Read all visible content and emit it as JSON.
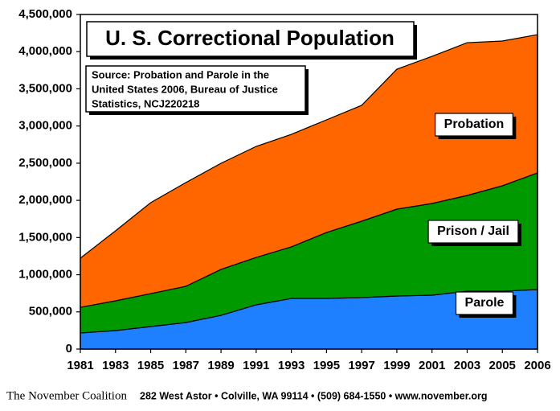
{
  "chart_data": {
    "type": "area",
    "stacked": true,
    "title": "U. S. Correctional Population",
    "subtitle": [
      "Source: Probation and Parole in the",
      "United States 2006, Bureau of Justice",
      "Statistics, NCJ220218"
    ],
    "categories": [
      "1981",
      "1983",
      "1985",
      "1987",
      "1989",
      "1991",
      "1993",
      "1995",
      "1997",
      "1999",
      "2001",
      "2003",
      "2005",
      "2006"
    ],
    "series": [
      {
        "name": "Parole",
        "color": "#1e7fff",
        "values": [
          216000,
          249000,
          303000,
          357000,
          454000,
          595000,
          681000,
          681000,
          692000,
          714000,
          725000,
          779000,
          779000,
          800000
        ]
      },
      {
        "name": "Prison / Jail",
        "color": "#009a00",
        "values": [
          346000,
          400000,
          443000,
          487000,
          617000,
          638000,
          693000,
          887000,
          1028000,
          1168000,
          1233000,
          1287000,
          1417000,
          1569000
        ]
      },
      {
        "name": "Probation",
        "color": "#ff6600",
        "values": [
          660000,
          941000,
          1223000,
          1395000,
          1428000,
          1493000,
          1514000,
          1515000,
          1558000,
          1882000,
          1979000,
          2055000,
          1947000,
          1860000
        ]
      }
    ],
    "ylim": [
      0,
      4500000
    ],
    "yticks": [
      0,
      {
        "value": 500000,
        "label": "500,000"
      },
      {
        "value": 1000000,
        "label": "1,000,000"
      },
      {
        "value": 1500000,
        "label": "1,500,000"
      },
      {
        "value": 2000000,
        "label": "2,000,000"
      },
      {
        "value": 2500000,
        "label": "2,500,000"
      },
      {
        "value": 3000000,
        "label": "3,000,000"
      },
      {
        "value": 3500000,
        "label": "3,500,000"
      },
      {
        "value": 4000000,
        "label": "4,000,000"
      },
      {
        "value": 4500000,
        "label": "4,500,000"
      }
    ],
    "logo": "The November Coalition",
    "footer": "282 West Astor • Colville, WA 99114 • (509) 684-1550 • www.november.org"
  }
}
